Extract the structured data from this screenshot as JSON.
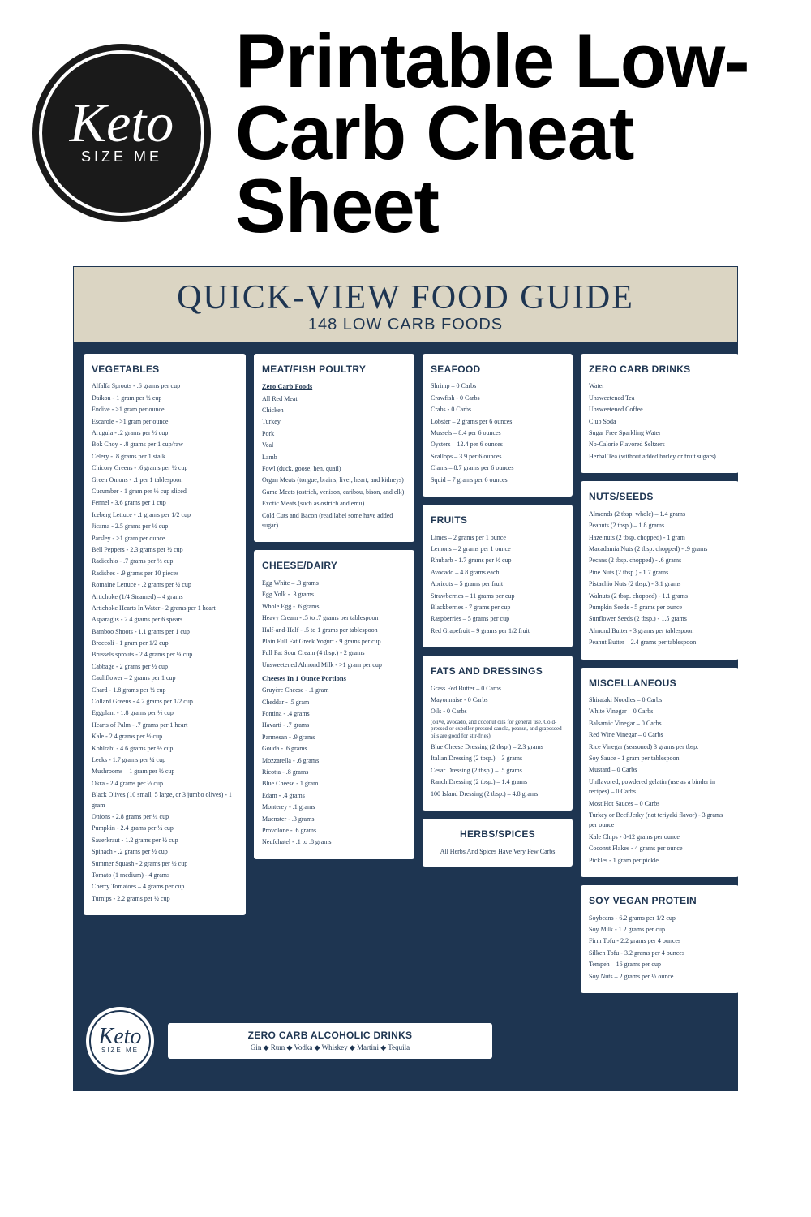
{
  "logo": {
    "main": "Keto",
    "sub": "SIZE ME"
  },
  "page_title": "Printable Low-Carb Cheat Sheet",
  "guide": {
    "title": "QUICK-VIEW FOOD GUIDE",
    "subtitle": "148 LOW CARB FOODS"
  },
  "vegetables": {
    "heading": "VEGETABLES",
    "items": [
      "Alfalfa Sprouts - .6 grams per cup",
      "Daikon - 1 gram per ½ cup",
      "Endive - >1 gram per ounce",
      "Escarole - >1 gram per ounce",
      "Arugula - .2 grams per ½ cup",
      "Bok Choy - .8 grams per 1 cup/raw",
      "Celery - .8 grams per 1 stalk",
      "Chicory Greens - .6 grams per ½ cup",
      "Green Onions - .1 per 1 tablespoon",
      "Cucumber - 1 gram per ½ cup sliced",
      "Fennel - 3.6 grams per 1 cup",
      "Iceberg Lettuce - .1 grams per 1/2 cup",
      "Jicama - 2.5 grams per ½ cup",
      "Parsley - >1 gram per ounce",
      "Bell Peppers - 2.3 grams per ½ cup",
      "Radicchio - .7 grams per ½ cup",
      "Radishes - .9 grams per 10 pieces",
      "Romaine Lettuce - .2 grams per ½ cup",
      "Artichoke (1/4 Steamed) – 4 grams",
      "Artichoke Hearts In Water - 2 grams per 1 heart",
      "Asparagus - 2.4 grams per 6 spears",
      "Bamboo Shoots - 1.1 grams per 1 cup",
      "Broccoli - 1 gram per 1/2 cup",
      "Brussels sprouts - 2.4 grams per ¼ cup",
      "Cabbage - 2 grams per ½ cup",
      "Cauliflower – 2 grams per 1 cup",
      "Chard - 1.8 grams per ½ cup",
      "Collard Greens - 4.2 grams per 1/2 cup",
      "Eggplant - 1.8 grams per ½ cup",
      "Hearts of Palm - .7 grams per 1 heart",
      "Kale - 2.4 grams per ½ cup",
      "Kohlrabi - 4.6 grams per ½ cup",
      "Leeks - 1.7 grams per ¼ cup",
      "Mushrooms – 1 gram per ½ cup",
      "Okra - 2.4 grams per ½ cup",
      "Black Olives (10 small, 5 large, or 3 jumbo olives) - 1 gram",
      "Onions - 2.8 grams per ¼ cup",
      "Pumpkin - 2.4 grams per ¼ cup",
      "Sauerkraut - 1.2 grams per ½ cup",
      "Spinach - .2 grams per ½ cup",
      "Summer Squash - 2 grams per ½ cup",
      "Tomato (1 medium) - 4 grams",
      "Cherry Tomatoes – 4 grams per cup",
      "Turnips - 2.2 grams per ½ cup"
    ]
  },
  "meat": {
    "heading": "MEAT/FISH POULTRY",
    "sub1": "Zero Carb Foods",
    "items": [
      "All Red Meat",
      "Chicken",
      "Turkey",
      "Pork",
      "Veal",
      "Lamb",
      "Fowl (duck, goose, hen, quail)",
      "Organ Meats (tongue, brains, liver, heart, and kidneys)",
      "Game Meats (ostrich, venison, caribou, bison, and elk)",
      "Exotic Meats (such as ostrich and emu)",
      "Cold Cuts and Bacon (read label some have added sugar)"
    ]
  },
  "cheese": {
    "heading": "CHEESE/DAIRY",
    "items1": [
      "Egg White – .3 grams",
      "Egg Yolk - .3 grams",
      "Whole Egg - .6 grams",
      "Heavy Cream - .5 to .7 grams per tablespoon",
      "Half-and-Half - .5 to 1 grams per tablespoon",
      "Plain Full Fat Greek Yogurt - 9 grams per cup",
      "Full Fat Sour Cream (4 tbsp.) - 2 grams",
      "Unsweetened Almond Milk - >1 gram per cup"
    ],
    "sub2": "Cheeses In 1 Ounce Portions",
    "items2": [
      "Gruyère Cheese - .1 gram",
      "Cheddar - .5 gram",
      "Fontina - .4 grams",
      "Havarti - .7 grams",
      "Parmesan - .9 grams",
      "Gouda - .6 grams",
      "Mozzarella - .6 grams",
      "Ricotta - .8 grams",
      "Blue Cheese - 1 gram",
      "Edam - .4 grams",
      "Monterey - .1 grams",
      "Muenster - .3 grams",
      "Provolone - .6 grams",
      "Neufchatel - .1 to .8 grams"
    ]
  },
  "seafood": {
    "heading": "SEAFOOD",
    "items": [
      "Shrimp – 0 Carbs",
      "Crawfish - 0 Carbs",
      "Crabs - 0 Carbs",
      "Lobster – 2 grams per 6 ounces",
      "Mussels – 8.4 per 6 ounces",
      "Oysters – 12.4 per 6 ounces",
      "Scallops – 3.9 per 6 ounces",
      "Clams – 8.7 grams per 6 ounces",
      "Squid – 7 grams per 6 ounces"
    ]
  },
  "fruits": {
    "heading": "FRUITS",
    "items": [
      "Limes – 2 grams per 1 ounce",
      "Lemons – 2 grams per 1 ounce",
      "Rhubarb - 1.7 grams per ½ cup",
      "Avocado – 4.8 grams each",
      "Apricots – 5 grams per fruit",
      "Strawberries – 11 grams per cup",
      "Blackberries - 7 grams per cup",
      "Raspberries – 5 grams per cup",
      "Red Grapefruit – 9 grams per 1/2 fruit"
    ]
  },
  "fats": {
    "heading": "FATS AND DRESSINGS",
    "items1": [
      "Grass Fed Butter – 0 Carbs",
      "Mayonnaise - 0 Carbs",
      "Oils - 0 Carbs"
    ],
    "note": "(olive, avocado, and coconut oils for general use. Cold-pressed or expeller-pressed canola, peanut, and grapeseed oils are good for stir-fries)",
    "items2": [
      "Blue Cheese Dressing (2 tbsp.) – 2.3 grams",
      "Italian Dressing (2 tbsp.) – 3 grams",
      "Cesar Dressing (2 tbsp.) – .5 grams",
      "Ranch Dressing (2 tbsp.) – 1.4 grams",
      "100 Island Dressing (2 tbsp.) – 4.8 grams"
    ]
  },
  "herbs": {
    "heading": "HERBS/SPICES",
    "line": "All Herbs And Spices Have Very Few Carbs"
  },
  "drinks": {
    "heading": "ZERO CARB DRINKS",
    "items": [
      "Water",
      "Unsweetened Tea",
      "Unsweetened Coffee",
      "Club Soda",
      "Sugar Free Sparkling Water",
      "No-Calorie Flavored Seltzers",
      "Herbal Tea (without added barley or fruit sugars)"
    ]
  },
  "nuts": {
    "heading": "NUTS/SEEDS",
    "items": [
      "Almonds (2 tbsp. whole) – 1.4 grams",
      "Peanuts (2 tbsp.) – 1.8 grams",
      "Hazelnuts (2 tbsp. chopped) - 1 gram",
      "Macadamia Nuts (2 tbsp. chopped) - .9 grams",
      "Pecans (2 tbsp. chopped) - .6 grams",
      "Pine Nuts (2 tbsp.) - 1.7 grams",
      "Pistachio Nuts (2 tbsp.) - 3.1 grams",
      "Walnuts (2 tbsp. chopped) - 1.1 grams",
      "Pumpkin Seeds - 5 grams per ounce",
      "Sunflower Seeds (2 tbsp.) - 1.5 grams",
      "Almond Butter - 3 grams per tablespoon",
      "Peanut Butter – 2.4 grams per tablespoon"
    ]
  },
  "misc": {
    "heading": "MISCELLANEOUS",
    "items": [
      "Shirataki Noodles – 0 Carbs",
      "White Vinegar – 0 Carbs",
      "Balsamic Vinegar – 0 Carbs",
      "Red Wine Vinegar – 0 Carbs",
      "Rice Vinegar (seasoned) 3 grams per tbsp.",
      "Soy Sauce - 1 gram per tablespoon",
      "Mustard – 0 Carbs",
      "Unflavored, powdered gelatin (use as a binder in recipes) – 0 Carbs",
      "Most Hot Sauces – 0 Carbs",
      "Turkey or Beef Jerky (not teriyaki flavor) - 3 grams per ounce",
      "Kale Chips - 8-12 grams per ounce",
      "Coconut Flakes - 4 grams per ounce",
      "Pickles - 1 gram per pickle"
    ]
  },
  "soy": {
    "heading": "SOY VEGAN PROTEIN",
    "items": [
      "Soybeans - 6.2 grams per 1/2 cup",
      "Soy Milk - 1.2 grams per cup",
      "Firm Tofu - 2.2 grams per 4 ounces",
      "Silken Tofu - 3.2 grams per 4 ounces",
      "Tempeh – 16 grams per cup",
      "Soy Nuts – 2 grams per ½ ounce"
    ]
  },
  "alcohol": {
    "heading": "ZERO CARB ALCOHOLIC DRINKS",
    "items": [
      "Gin",
      "Rum",
      "Vodka",
      "Whiskey",
      "Martini",
      "Tequila"
    ]
  }
}
